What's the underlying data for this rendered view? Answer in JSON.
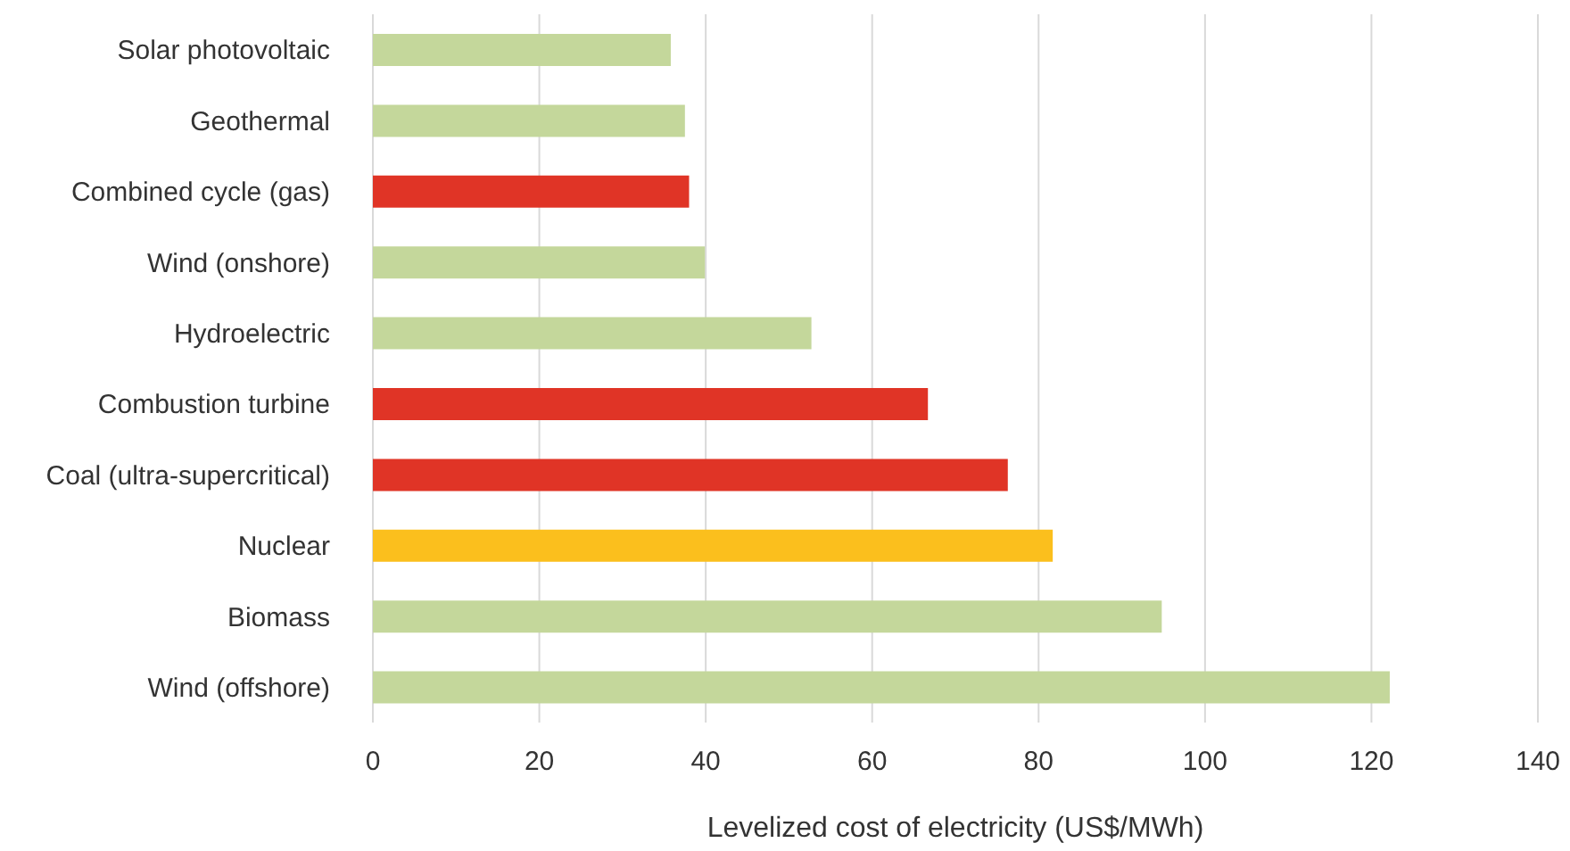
{
  "chart_data": {
    "type": "bar",
    "orientation": "horizontal",
    "xlabel": "Levelized cost of electricity (US$/MWh)",
    "categories": [
      "Solar photovoltaic",
      "Geothermal",
      "Combined cycle (gas)",
      "Wind (onshore)",
      "Hydroelectric",
      "Combustion turbine",
      "Coal (ultra-supercritical)",
      "Nuclear",
      "Biomass",
      "Wind (offshore)"
    ],
    "values": [
      35.8,
      37.5,
      38,
      39.9,
      52.7,
      66.7,
      76.3,
      81.7,
      94.8,
      122.2
    ],
    "colors": [
      "#c4d79b",
      "#c4d79b",
      "#e03426",
      "#c4d79b",
      "#c4d79b",
      "#e03426",
      "#e03426",
      "#fbbf1d",
      "#c4d79b",
      "#c4d79b"
    ],
    "xlim": [
      0,
      140
    ],
    "xticks": [
      0,
      20,
      40,
      60,
      80,
      100,
      120,
      140
    ],
    "grid": "x",
    "legend": false
  }
}
